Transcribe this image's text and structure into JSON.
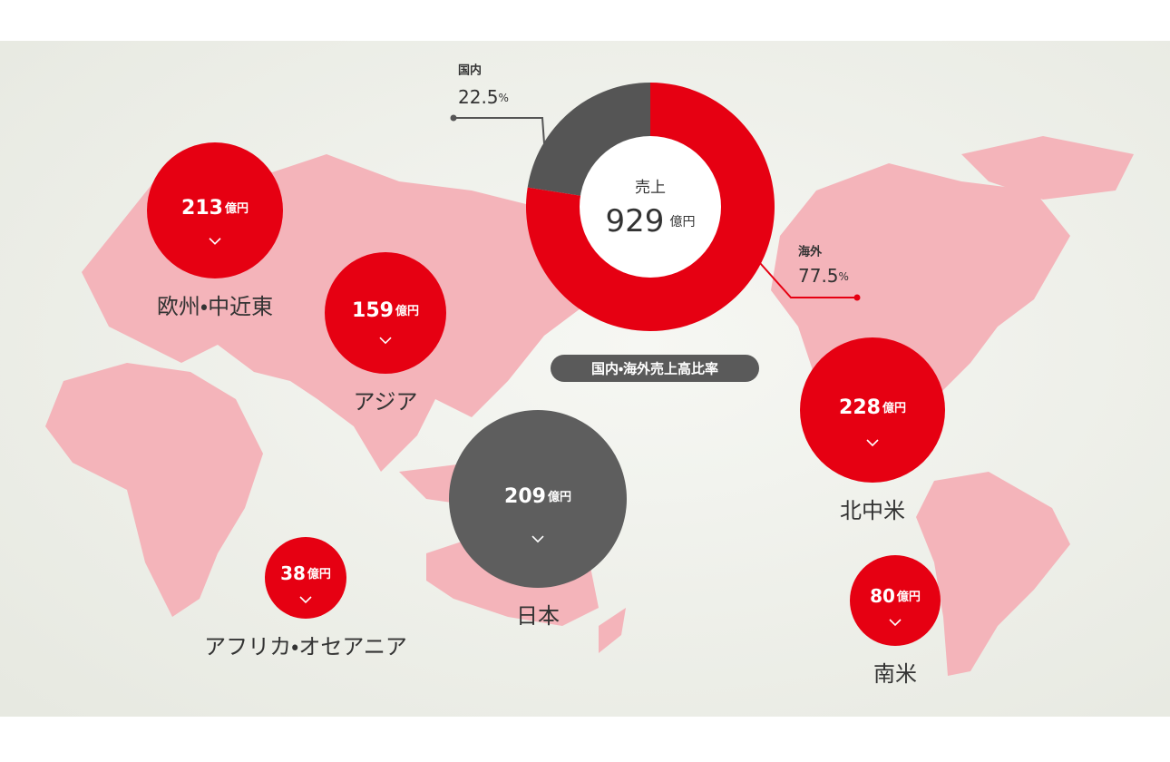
{
  "chart_data": {
    "type": "pie",
    "center_title": "売上",
    "center_total": 929,
    "center_unit": "億円",
    "categories": [
      "国内",
      "海外"
    ],
    "values": [
      22.5,
      77.5
    ],
    "value_unit": "%",
    "colors": [
      "#555555",
      "#e60012"
    ],
    "caption": "国内・海外売上高比率"
  },
  "regions": [
    {
      "name": "欧州・中近東",
      "value": 213,
      "unit": "億円",
      "color": "#e60012"
    },
    {
      "name": "アジア",
      "value": 159,
      "unit": "億円",
      "color": "#e60012"
    },
    {
      "name": "日本",
      "value": 209,
      "unit": "億円",
      "color": "#5e5e5e"
    },
    {
      "name": "アフリカ・オセアニア",
      "value": 38,
      "unit": "億円",
      "color": "#e60012"
    },
    {
      "name": "北中米",
      "value": 228,
      "unit": "億円",
      "color": "#e60012"
    },
    {
      "name": "南米",
      "value": 80,
      "unit": "億円",
      "color": "#e60012"
    }
  ]
}
